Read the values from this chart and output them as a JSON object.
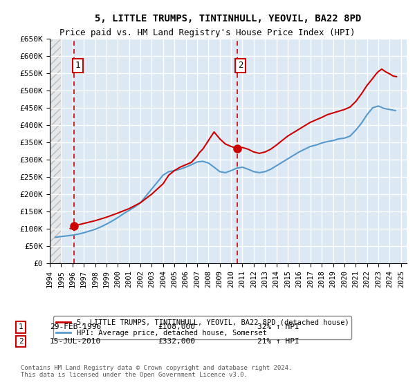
{
  "title": "5, LITTLE TRUMPS, TINTINHULL, YEOVIL, BA22 8PD",
  "subtitle": "Price paid vs. HM Land Registry's House Price Index (HPI)",
  "xlabel": "",
  "ylabel": "",
  "ylim": [
    0,
    650000
  ],
  "yticks": [
    0,
    50000,
    100000,
    150000,
    200000,
    250000,
    300000,
    350000,
    400000,
    450000,
    500000,
    550000,
    600000,
    650000
  ],
  "ytick_labels": [
    "£0",
    "£50K",
    "£100K",
    "£150K",
    "£200K",
    "£250K",
    "£300K",
    "£350K",
    "£400K",
    "£450K",
    "£500K",
    "£550K",
    "£600K",
    "£650K"
  ],
  "xmin": 1994.0,
  "xmax": 2025.5,
  "plot_bg_color": "#dce9f5",
  "hatch_bg_color": "#d0d0d0",
  "grid_color": "#ffffff",
  "red_line_color": "#cc0000",
  "blue_line_color": "#5599cc",
  "marker_color": "#cc0000",
  "transaction1": {
    "year": 1996.16,
    "price": 108000,
    "label": "1",
    "date": "29-FEB-1996",
    "amount": "£108,000",
    "pct": "32% ↑ HPI"
  },
  "transaction2": {
    "year": 2010.54,
    "price": 332000,
    "label": "2",
    "date": "15-JUL-2010",
    "amount": "£332,000",
    "pct": "21% ↑ HPI"
  },
  "legend_line1": "5, LITTLE TRUMPS, TINTINHULL, YEOVIL, BA22 8PD (detached house)",
  "legend_line2": "HPI: Average price, detached house, Somerset",
  "footnote": "Contains HM Land Registry data © Crown copyright and database right 2024.\nThis data is licensed under the Open Government Licence v3.0.",
  "hpi_years": [
    1994.5,
    1995.0,
    1995.5,
    1996.0,
    1996.5,
    1997.0,
    1997.5,
    1998.0,
    1998.5,
    1999.0,
    1999.5,
    2000.0,
    2000.5,
    2001.0,
    2001.5,
    2002.0,
    2002.5,
    2003.0,
    2003.5,
    2004.0,
    2004.5,
    2005.0,
    2005.5,
    2006.0,
    2006.5,
    2007.0,
    2007.5,
    2008.0,
    2008.5,
    2009.0,
    2009.5,
    2010.0,
    2010.5,
    2011.0,
    2011.5,
    2012.0,
    2012.5,
    2013.0,
    2013.5,
    2014.0,
    2014.5,
    2015.0,
    2015.5,
    2016.0,
    2016.5,
    2017.0,
    2017.5,
    2018.0,
    2018.5,
    2019.0,
    2019.5,
    2020.0,
    2020.5,
    2021.0,
    2021.5,
    2022.0,
    2022.5,
    2023.0,
    2023.5,
    2024.0,
    2024.5
  ],
  "hpi_values": [
    75000,
    77000,
    79000,
    81000,
    84000,
    88000,
    93000,
    98000,
    105000,
    113000,
    122000,
    132000,
    143000,
    153000,
    163000,
    175000,
    195000,
    215000,
    235000,
    255000,
    265000,
    268000,
    272000,
    278000,
    285000,
    293000,
    295000,
    290000,
    278000,
    265000,
    262000,
    268000,
    275000,
    278000,
    272000,
    265000,
    262000,
    265000,
    272000,
    282000,
    292000,
    302000,
    312000,
    322000,
    330000,
    338000,
    342000,
    348000,
    352000,
    355000,
    360000,
    362000,
    368000,
    385000,
    405000,
    430000,
    450000,
    455000,
    448000,
    445000,
    442000
  ],
  "red_years": [
    1995.8,
    1996.16,
    1997.0,
    1998.0,
    1999.0,
    2000.0,
    2001.0,
    2002.0,
    2003.0,
    2004.0,
    2004.5,
    2005.0,
    2005.5,
    2006.0,
    2006.5,
    2007.0,
    2007.2,
    2007.5,
    2008.0,
    2008.5,
    2009.0,
    2009.5,
    2010.0,
    2010.54,
    2011.0,
    2011.5,
    2012.0,
    2012.5,
    2013.0,
    2013.5,
    2014.0,
    2014.5,
    2015.0,
    2015.5,
    2016.0,
    2016.5,
    2017.0,
    2017.5,
    2018.0,
    2018.5,
    2019.0,
    2019.5,
    2020.0,
    2020.5,
    2021.0,
    2021.5,
    2022.0,
    2022.5,
    2022.8,
    2023.0,
    2023.3,
    2023.6,
    2024.0,
    2024.3,
    2024.6
  ],
  "red_values": [
    100000,
    108000,
    115000,
    123000,
    133000,
    145000,
    158000,
    175000,
    200000,
    230000,
    255000,
    268000,
    278000,
    285000,
    292000,
    310000,
    320000,
    330000,
    355000,
    380000,
    360000,
    345000,
    338000,
    332000,
    335000,
    330000,
    322000,
    318000,
    322000,
    330000,
    342000,
    355000,
    368000,
    378000,
    388000,
    398000,
    408000,
    415000,
    422000,
    430000,
    435000,
    440000,
    445000,
    452000,
    468000,
    490000,
    515000,
    535000,
    548000,
    555000,
    562000,
    555000,
    548000,
    542000,
    540000
  ]
}
